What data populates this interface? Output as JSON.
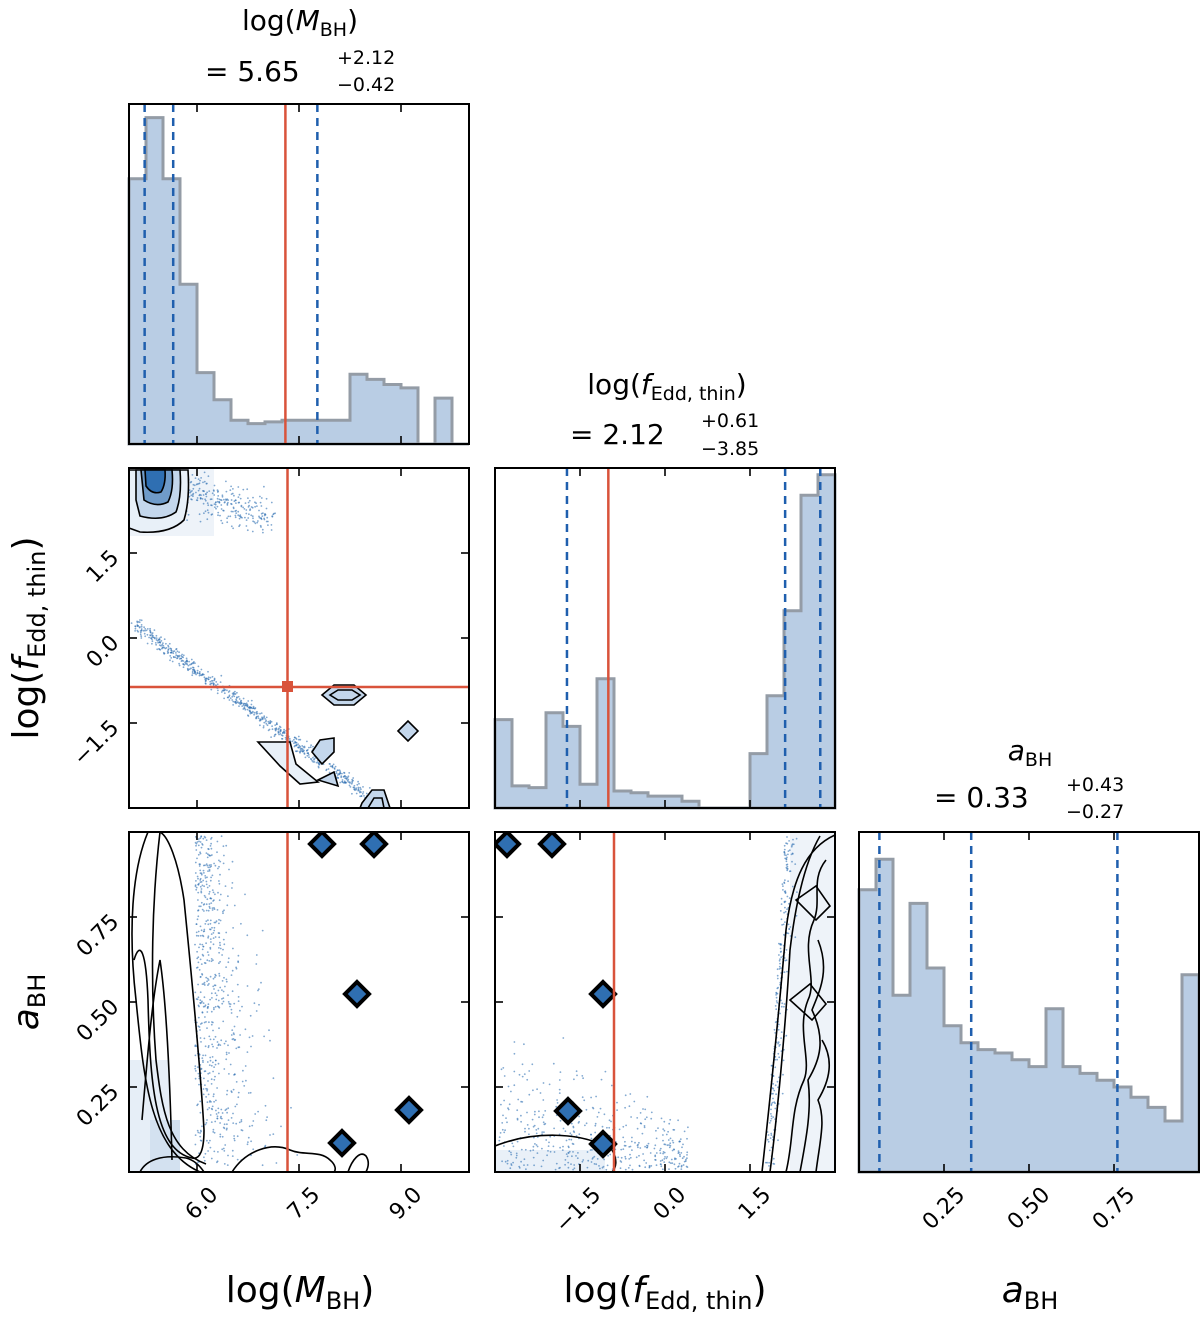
{
  "colors": {
    "hist_fill": "#b9cde4",
    "hist_edge": "#949ca6",
    "quantile_line": "#1f5fae",
    "truth_line": "#d9533b",
    "sample_points": "#2f6fb2"
  },
  "chart_data": {
    "type": "corner",
    "parameters": [
      {
        "axis_label_pre": "log(",
        "axis_label_var": "M",
        "axis_label_sub": "BH",
        "axis_label_post": ")",
        "title_value": "= 5.65",
        "title_plus": "+2.12",
        "title_minus": "−0.42",
        "range": [
          5.0,
          10.0
        ],
        "ticks": [
          "6.0",
          "7.5",
          "9.0"
        ],
        "tick_values": [
          6.0,
          7.5,
          9.0
        ],
        "quantiles": [
          5.23,
          5.65,
          7.77
        ],
        "truth": 7.3,
        "hist_bins": 20,
        "hist_heights": [
          0.78,
          0.96,
          0.78,
          0.47,
          0.21,
          0.13,
          0.07,
          0.06,
          0.065,
          0.07,
          0.07,
          0.07,
          0.07,
          0.205,
          0.19,
          0.175,
          0.165,
          0.0,
          0.135,
          0.0
        ]
      },
      {
        "axis_label_pre": "log(",
        "axis_label_var": "f",
        "axis_label_sub": "Edd, thin",
        "axis_label_post": ")",
        "title_value": "= 2.12",
        "title_plus": "+0.61",
        "title_minus": "−3.85",
        "range": [
          -3.0,
          3.0
        ],
        "ticks": [
          "−1.5",
          "0.0",
          "1.5"
        ],
        "tick_values": [
          -1.5,
          0.0,
          1.5
        ],
        "quantiles": [
          -1.73,
          2.12,
          2.74
        ],
        "truth": -1.0,
        "hist_bins": 20,
        "hist_heights": [
          0.26,
          0.065,
          0.06,
          0.28,
          0.24,
          0.07,
          0.38,
          0.05,
          0.045,
          0.035,
          0.035,
          0.02,
          0.0,
          0.0,
          0.0,
          0.16,
          0.33,
          0.58,
          0.92,
          0.98
        ]
      },
      {
        "axis_label_pre": "",
        "axis_label_var": "a",
        "axis_label_sub": "BH",
        "axis_label_post": "",
        "title_value": "= 0.33",
        "title_plus": "+0.43",
        "title_minus": "−0.27",
        "range": [
          0.0,
          1.0
        ],
        "ticks": [
          "0.25",
          "0.50",
          "0.75"
        ],
        "tick_values": [
          0.25,
          0.5,
          0.75
        ],
        "quantiles": [
          0.06,
          0.33,
          0.76
        ],
        "truth": null,
        "hist_bins": 20,
        "hist_heights": [
          0.83,
          0.92,
          0.52,
          0.79,
          0.6,
          0.43,
          0.38,
          0.36,
          0.35,
          0.33,
          0.31,
          0.48,
          0.31,
          0.29,
          0.27,
          0.25,
          0.22,
          0.19,
          0.15,
          0.58
        ]
      }
    ],
    "truth_point_2d": [
      7.3,
      -1.0
    ]
  }
}
